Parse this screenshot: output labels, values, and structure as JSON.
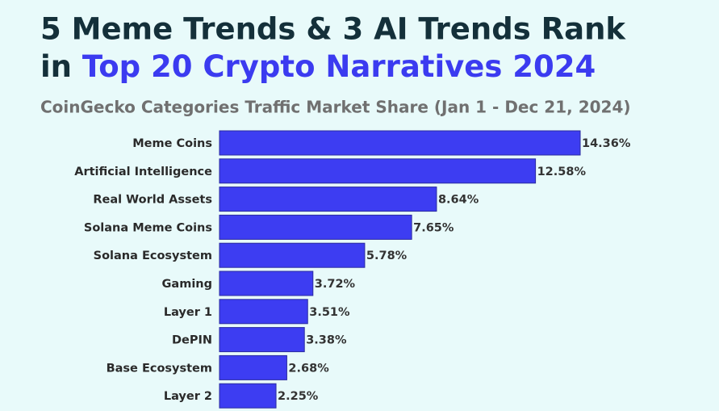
{
  "chart_data": {
    "type": "bar",
    "orientation": "horizontal",
    "title": [
      "5 Meme Trends & 3 AI Trends Rank",
      "in",
      "Top 20 Crypto Narratives 2024"
    ],
    "subtitle": "CoinGecko Categories Traffic Market Share (Jan 1 - Dec 21, 2024)",
    "categories": [
      "Meme Coins",
      "Artificial Intelligence",
      "Real World Assets",
      "Solana Meme Coins",
      "Solana Ecosystem",
      "Gaming",
      "Layer 1",
      "DePIN",
      "Base Ecosystem",
      "Layer 2"
    ],
    "values": [
      14.36,
      12.58,
      8.64,
      7.65,
      5.78,
      3.72,
      3.51,
      3.38,
      2.68,
      2.25
    ],
    "value_labels": [
      "14.36%",
      "12.58%",
      "8.64%",
      "7.65%",
      "5.78%",
      "3.72%",
      "3.51%",
      "3.38%",
      "2.68%",
      "2.25%"
    ],
    "color": "#3d3df2",
    "title_color": "#14303a",
    "title_highlight_color": "#3b3bf0"
  }
}
